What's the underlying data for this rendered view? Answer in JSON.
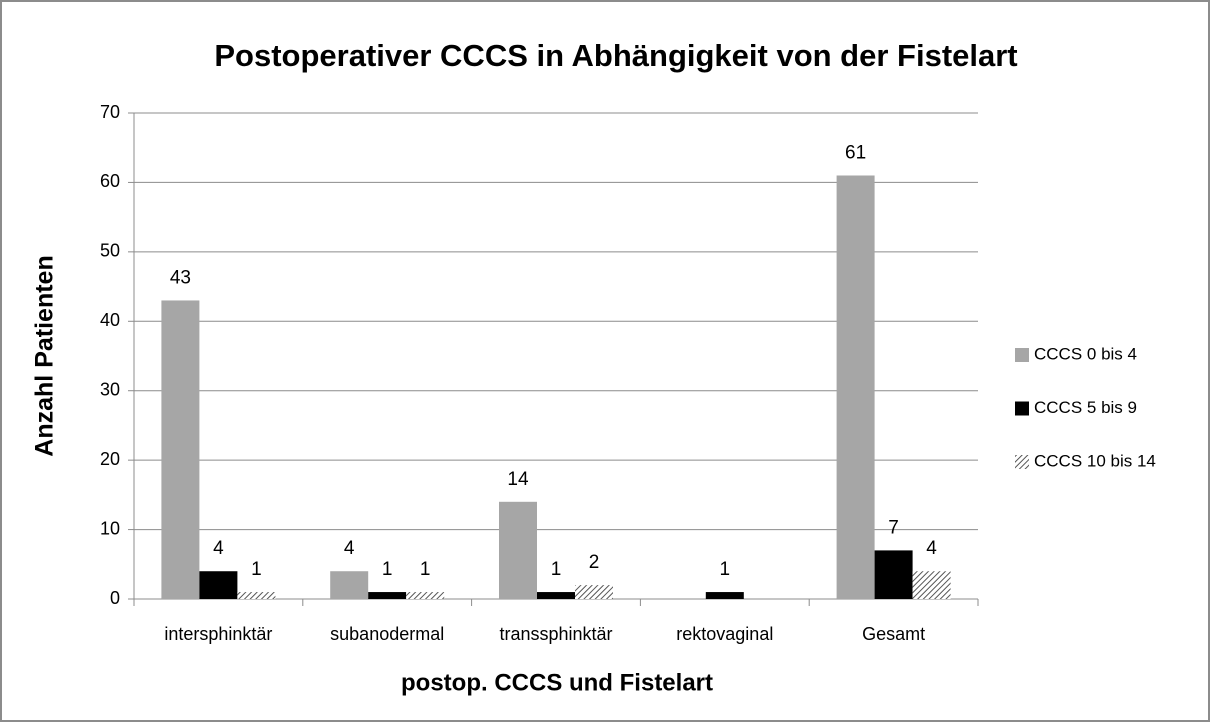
{
  "chart_data": {
    "type": "bar",
    "title": "Postoperativer CCCS in Abhängigkeit von der Fistelart",
    "x_label": "postop. CCCS und Fistelart",
    "y_label": "Anzahl Patienten",
    "categories": [
      "intersphinktär",
      "subanodermal",
      "transsphinktär",
      "rektovaginal",
      "Gesamt"
    ],
    "series": [
      {
        "name": "CCCS 0 bis 4",
        "color": "#a6a6a6",
        "values": [
          43,
          4,
          14,
          null,
          61
        ]
      },
      {
        "name": "CCCS 5 bis 9",
        "color": "#000000",
        "values": [
          4,
          1,
          1,
          1,
          7
        ]
      },
      {
        "name": "CCCS 10 bis 14",
        "color": "#555555",
        "hatch": true,
        "values": [
          1,
          1,
          2,
          null,
          4
        ]
      }
    ],
    "ylim": [
      0,
      70
    ],
    "yticks": [
      0,
      10,
      20,
      30,
      40,
      50,
      60,
      70
    ],
    "grid": true,
    "legend": "right"
  }
}
